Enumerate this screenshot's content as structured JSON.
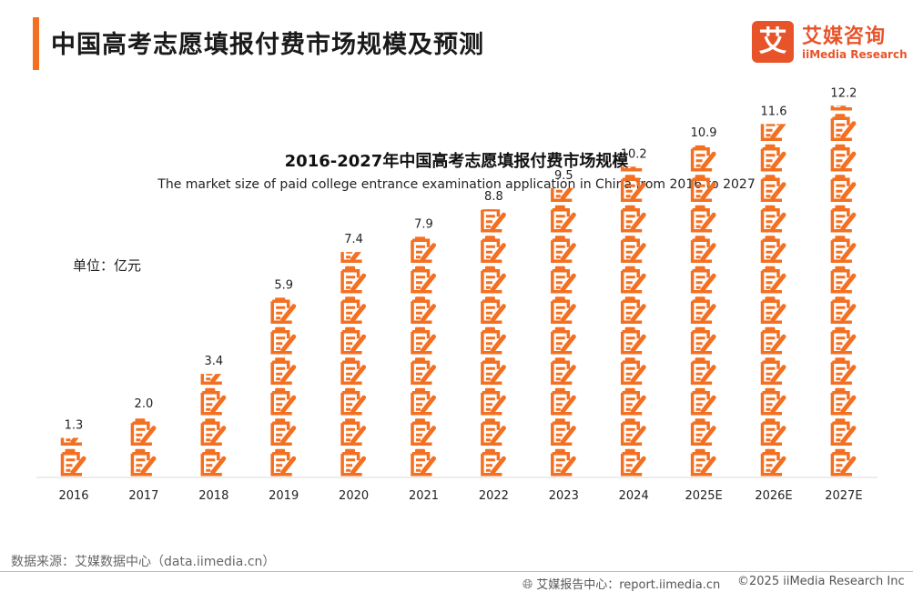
{
  "header": {
    "title": "中国高考志愿填报付费市场规模及预测",
    "logo_mark": "艾",
    "logo_cn": "艾媒咨询",
    "logo_en": "iiMedia Research"
  },
  "chart_data": {
    "type": "bar",
    "title": "2016-2027年中国高考志愿填报付费市场规模",
    "subtitle": "The market size of paid college entrance examination application in China from 2016 to 2027",
    "unit_label": "单位：亿元",
    "categories": [
      "2016",
      "2017",
      "2018",
      "2019",
      "2020",
      "2021",
      "2022",
      "2023",
      "2024",
      "2025E",
      "2026E",
      "2027E"
    ],
    "values": [
      1.3,
      2.0,
      3.4,
      5.9,
      7.4,
      7.9,
      8.8,
      9.5,
      10.2,
      10.9,
      11.6,
      12.2
    ],
    "value_labels": [
      "1.3",
      "2.0",
      "3.4",
      "5.9",
      "7.4",
      "7.9",
      "8.8",
      "9.5",
      "10.2",
      "10.9",
      "11.6",
      "12.2"
    ],
    "bar_style": "pictograph",
    "bar_icon": "form-with-pencil-icon",
    "bar_color": "#f36f21",
    "ylim": [
      0,
      14
    ],
    "grid": false
  },
  "footer": {
    "source": "数据来源：艾媒数据中心（data.iimedia.cn）",
    "report": "艾媒报告中心：report.iimedia.cn",
    "copyright": "©2025  iiMedia Research  Inc",
    "globe_icon": "globe-icon"
  }
}
